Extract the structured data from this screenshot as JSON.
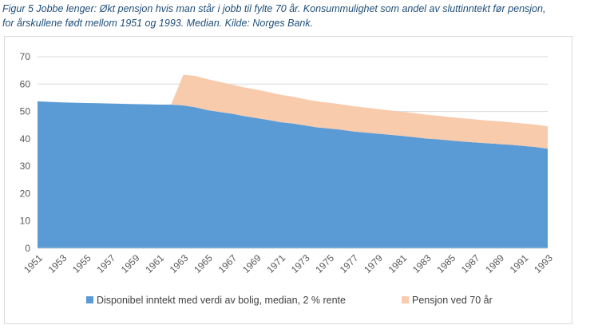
{
  "caption": {
    "line1": "Figur 5 Jobbe lenger: Økt pensjon hvis man står i jobb til fylte 70 år. Konsummulighet som andel av sluttinntekt før pensjon,",
    "line2": "for årskullene født mellom 1951 og 1993. Median. Kilde: Norges Bank."
  },
  "colors": {
    "base": "#5b9bd5",
    "extra": "#f8cbad",
    "grid": "#d9d9d9",
    "text": "#595959"
  },
  "chart_data": {
    "type": "area",
    "stacked": true,
    "x": [
      1951,
      1952,
      1953,
      1954,
      1955,
      1956,
      1957,
      1958,
      1959,
      1960,
      1961,
      1962,
      1963,
      1964,
      1965,
      1966,
      1967,
      1968,
      1969,
      1970,
      1971,
      1972,
      1973,
      1974,
      1975,
      1976,
      1977,
      1978,
      1979,
      1980,
      1981,
      1982,
      1983,
      1984,
      1985,
      1986,
      1987,
      1988,
      1989,
      1990,
      1991,
      1992,
      1993
    ],
    "x_tick_labels": [
      "1951",
      "1953",
      "1955",
      "1957",
      "1959",
      "1961",
      "1963",
      "1965",
      "1967",
      "1969",
      "1971",
      "1973",
      "1975",
      "1977",
      "1979",
      "1981",
      "1983",
      "1985",
      "1987",
      "1989",
      "1991",
      "1993"
    ],
    "ylim": [
      0,
      70
    ],
    "y_ticks": [
      "0",
      "10",
      "20",
      "30",
      "40",
      "50",
      "60",
      "70"
    ],
    "grid": true,
    "legend_position": "bottom",
    "series": [
      {
        "name": "Disponibel inntekt med verdi av bolig, median, 2 % rente",
        "color_key": "base",
        "values": [
          53.7,
          53.5,
          53.3,
          53.2,
          53.1,
          53.0,
          52.9,
          52.8,
          52.7,
          52.6,
          52.5,
          52.5,
          52.2,
          51.5,
          50.5,
          49.8,
          49.2,
          48.3,
          47.6,
          46.9,
          46.1,
          45.6,
          44.9,
          44.2,
          43.8,
          43.3,
          42.7,
          42.3,
          41.9,
          41.5,
          41.1,
          40.6,
          40.1,
          39.8,
          39.4,
          39.0,
          38.7,
          38.4,
          38.1,
          37.8,
          37.4,
          37.0,
          36.4
        ]
      },
      {
        "name": "Pensjon ved 70 år",
        "color_key": "extra",
        "values": [
          0,
          0,
          0,
          0,
          0,
          0,
          0,
          0,
          0,
          0,
          0,
          0,
          11.2,
          11.5,
          11.3,
          11.0,
          10.6,
          10.5,
          10.4,
          10.2,
          10.0,
          9.8,
          9.6,
          9.5,
          9.4,
          9.3,
          9.2,
          9.1,
          9.0,
          8.9,
          8.8,
          8.8,
          8.7,
          8.6,
          8.5,
          8.5,
          8.4,
          8.3,
          8.3,
          8.2,
          8.2,
          8.2,
          8.2
        ]
      }
    ]
  }
}
